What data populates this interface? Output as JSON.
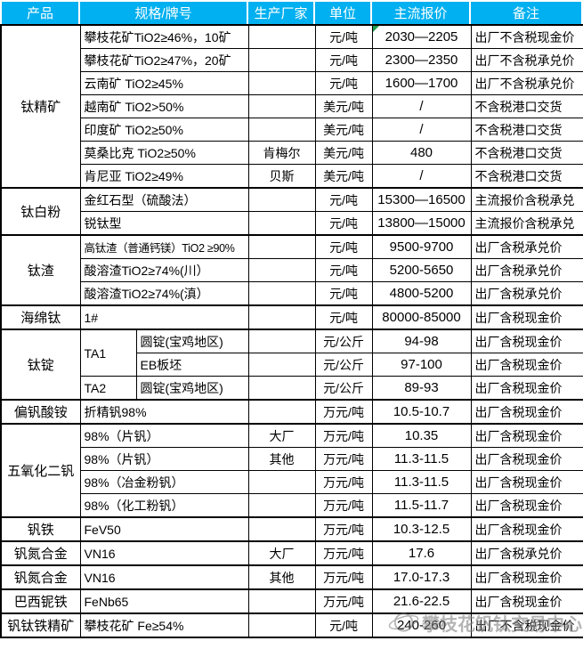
{
  "table": {
    "columns": [
      "产品",
      "规格/牌号",
      "生产厂家",
      "单位",
      "主流报价",
      "备注"
    ],
    "rows": [
      {
        "product": "钛精矿",
        "product_rowspan": 7,
        "group_start": true,
        "spec": "攀枝花矿TiO2≥46%，10矿",
        "maker": "",
        "unit": "元/吨",
        "price": "2030—2205",
        "note": "出厂不含税现金价",
        "marker": true
      },
      {
        "spec": "攀枝花矿TiO2≥47%，20矿",
        "maker": "",
        "unit": "元/吨",
        "price": "2300—2350",
        "note": "出厂不含税承兑价"
      },
      {
        "spec": "云南矿 TiO2≥45%",
        "maker": "",
        "unit": "元/吨",
        "price": "1600—1700",
        "note": "出厂不含税承兑价"
      },
      {
        "spec": "越南矿 TiO2>50%",
        "maker": "",
        "unit": "美元/吨",
        "price": "/",
        "note": "不含税港口交货"
      },
      {
        "spec": "印度矿 TiO2≥50%",
        "maker": "",
        "unit": "美元/吨",
        "price": "/",
        "note": "不含税港口交货"
      },
      {
        "spec": "莫桑比克 TiO2≥50%",
        "maker": "肯梅尔",
        "unit": "美元/吨",
        "price": "480",
        "note": "不含税港口交货"
      },
      {
        "spec": "肯尼亚 TiO2≥49%",
        "maker": "贝斯",
        "unit": "美元/吨",
        "price": "/",
        "note": "不含税港口交货"
      },
      {
        "product": "钛白粉",
        "product_rowspan": 2,
        "group_start": true,
        "spec": "金红石型（硫酸法）",
        "maker": "",
        "unit": "元/吨",
        "price": "15300—16500",
        "note": "主流报价含税承兑"
      },
      {
        "spec": "锐钛型",
        "maker": "",
        "unit": "元/吨",
        "price": "13800—15000",
        "note": "主流报价含税承兑"
      },
      {
        "product": "钛渣",
        "product_rowspan": 3,
        "group_start": true,
        "spec": "高钛渣（普通钙镁）TiO2 ≥90%",
        "maker": "",
        "unit": "元/吨",
        "price": "9500-9700",
        "note": "出厂含税承兑价"
      },
      {
        "spec": "酸溶渣TiO2≥74%(川）",
        "maker": "",
        "unit": "元/吨",
        "price": "5200-5650",
        "note": "出厂含税承兑价"
      },
      {
        "spec": "酸溶渣TiO2≥74%(滇）",
        "maker": "",
        "unit": "元/吨",
        "price": "4800-5200",
        "note": "出厂含税承兑价"
      },
      {
        "product": "海绵钛",
        "product_rowspan": 1,
        "group_start": true,
        "spec": "1#",
        "maker": "",
        "unit": "元/吨",
        "price": "80000-85000",
        "note": "出厂含税现金价"
      },
      {
        "product": "钛锭",
        "product_rowspan": 3,
        "group_start": true,
        "spec_left": "TA1",
        "spec_left_rowspan": 2,
        "spec_right": "圆锭(宝鸡地区)",
        "maker": "",
        "unit": "元/公斤",
        "price": "94-98",
        "note": "出厂含税现金价"
      },
      {
        "spec_right": "EB板坯",
        "maker": "",
        "unit": "元/公斤",
        "price": "97-100",
        "note": "出厂含税现金价"
      },
      {
        "spec_left": "TA2",
        "spec_left_rowspan": 1,
        "spec_right": "圆锭(宝鸡地区)",
        "maker": "",
        "unit": "元/公斤",
        "price": "89-93",
        "note": "出厂含税现金价"
      },
      {
        "product": "偏钒酸铵",
        "product_rowspan": 1,
        "group_start": true,
        "spec": "折精钒98%",
        "maker": "",
        "unit": "万元/吨",
        "price": "10.5-10.7",
        "note": "出厂含税现金价"
      },
      {
        "product": "五氧化二钒",
        "product_rowspan": 4,
        "group_start": true,
        "spec": "98%（片钒）",
        "maker": "大厂",
        "unit": "万元/吨",
        "price": "10.35",
        "note": "出厂含税现金价"
      },
      {
        "spec": "98%（片钒）",
        "maker": "其他",
        "unit": "万元/吨",
        "price": "11.3-11.5",
        "note": "出厂含税现金价"
      },
      {
        "spec": "98%（冶金粉钒）",
        "maker": "",
        "unit": "万元/吨",
        "price": "11.3-11.5",
        "note": "出厂含税现金价"
      },
      {
        "spec": "98%（化工粉钒）",
        "maker": "",
        "unit": "万元/吨",
        "price": "11.5-11.7",
        "note": "出厂含税现金价"
      },
      {
        "product": "钒铁",
        "product_rowspan": 1,
        "group_start": true,
        "spec": "FeV50",
        "maker": "",
        "unit": "万元/吨",
        "price": "10.3-12.5",
        "note": "出厂含税现金价"
      },
      {
        "product": "钒氮合金",
        "product_rowspan": 1,
        "group_start": true,
        "spec": "VN16",
        "maker": "大厂",
        "unit": "万元/吨",
        "price": "17.6",
        "note": "出厂含税承兑价"
      },
      {
        "product": "钒氮合金",
        "product_rowspan": 1,
        "group_start": true,
        "spec": "VN16",
        "maker": "其他",
        "unit": "万元/吨",
        "price": "17.0-17.3",
        "note": "出厂含税现金价"
      },
      {
        "product": "巴西铌铁",
        "product_rowspan": 1,
        "group_start": true,
        "spec": "FeNb65",
        "maker": "",
        "unit": "万元/吨",
        "price": "21.6-22.5",
        "note": "出厂含税现金价"
      },
      {
        "product": "钒钛铁精矿",
        "product_rowspan": 1,
        "group_start": true,
        "spec": "攀枝花矿 Fe≥54%",
        "maker": "",
        "unit": "元/吨",
        "price": "240-260",
        "note": "出厂不含税现金价"
      }
    ]
  },
  "watermark": {
    "text": "攀枝花钒钛交易中心",
    "logo": "orbit-circle-logo"
  },
  "colors": {
    "header_bg": "#00B0F0",
    "header_text": "#FFFFFF",
    "border": "#000000",
    "marker_green": "#1E9E50",
    "watermark_gray": "#787878"
  }
}
